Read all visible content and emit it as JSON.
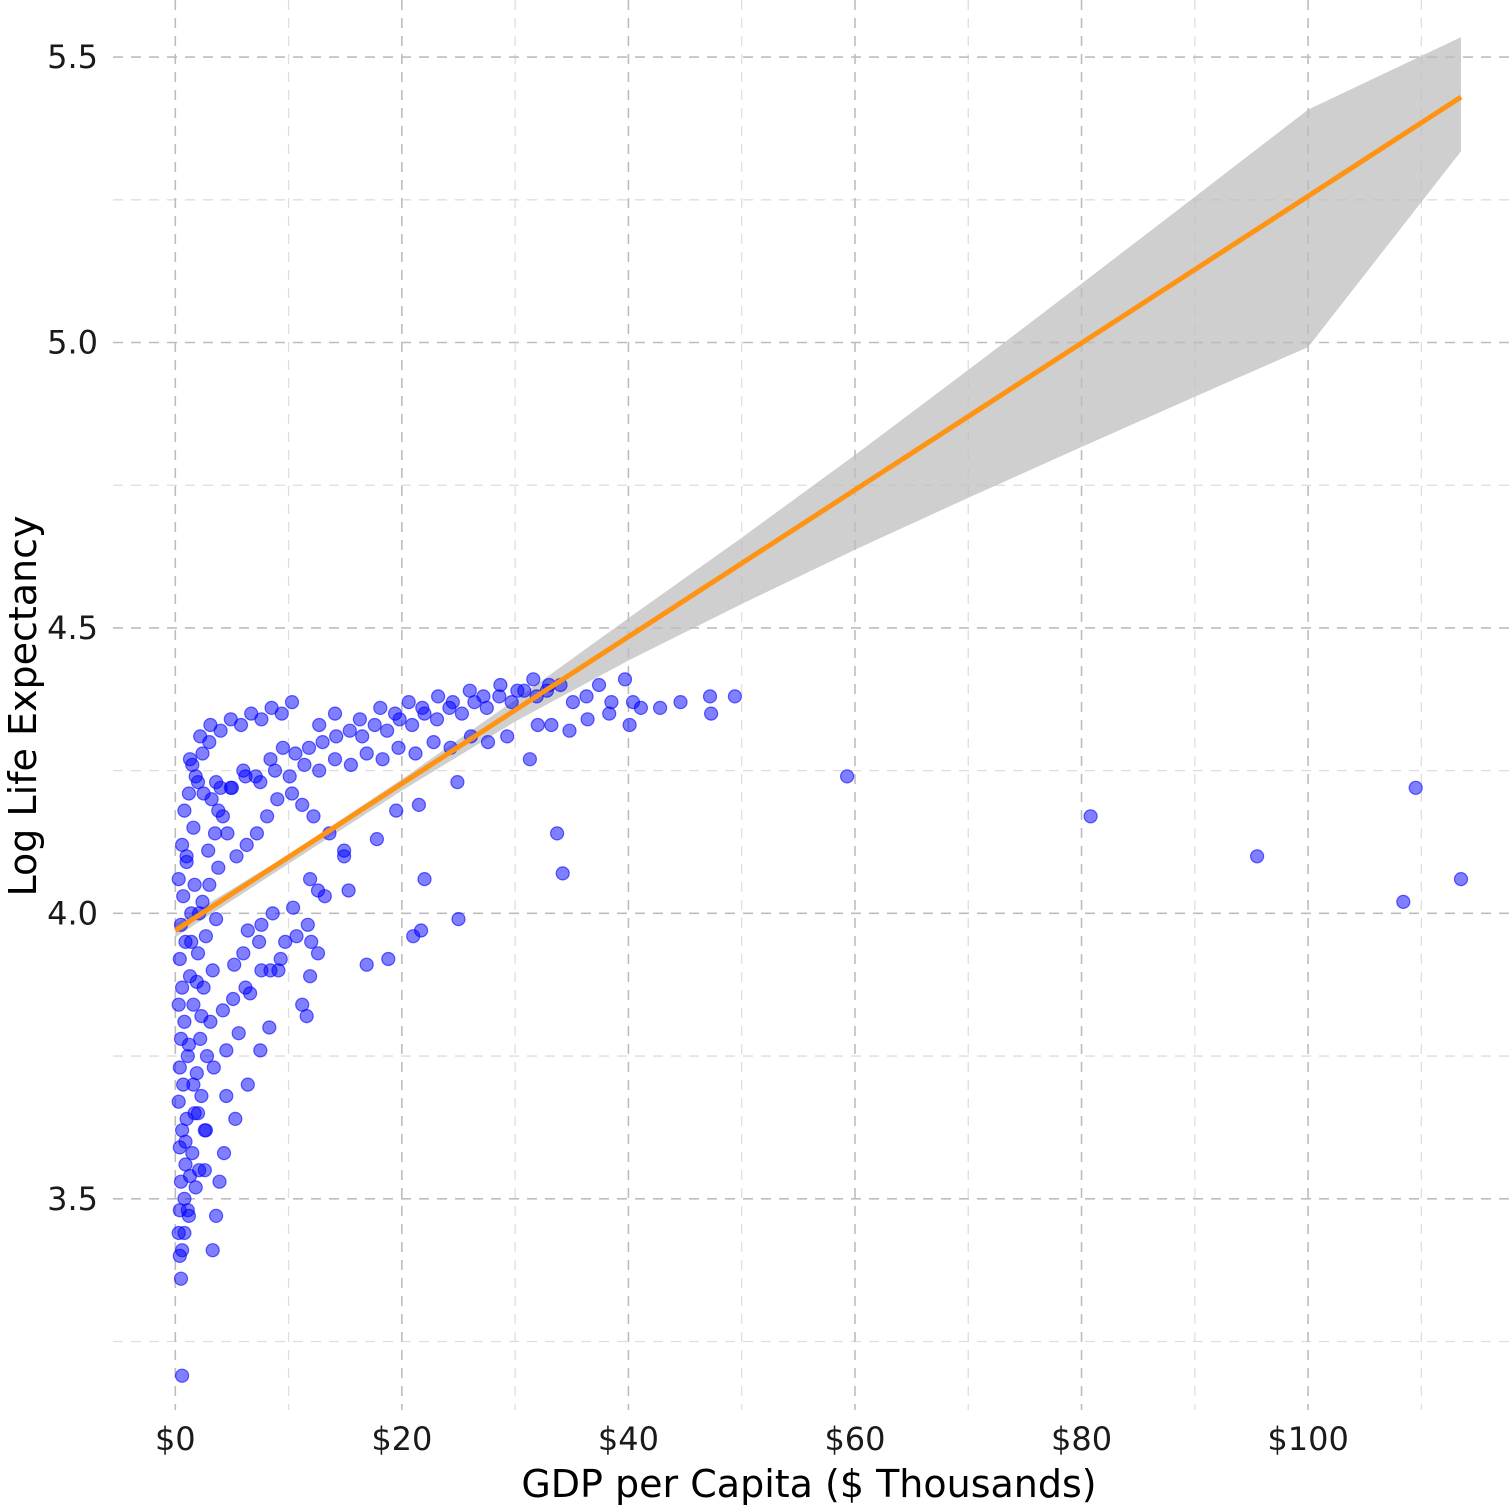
{
  "chart_data": {
    "type": "scatter",
    "title": "",
    "xlabel": "GDP per Capita ($ Thousands)",
    "ylabel": "Log Life Expectancy",
    "xlim": [
      -5.5,
      118
    ],
    "ylim": [
      3.13,
      5.6
    ],
    "x_major_ticks": [
      0,
      20,
      40,
      60,
      80,
      100
    ],
    "x_tick_labels": [
      "$0",
      "$20",
      "$40",
      "$60",
      "$80",
      "$100"
    ],
    "x_minor_ticks": [
      10,
      30,
      50,
      70,
      90,
      110
    ],
    "y_major_ticks": [
      3.5,
      4.0,
      4.5,
      5.0,
      5.5
    ],
    "y_tick_labels": [
      "3.5",
      "4.0",
      "4.5",
      "5.0",
      "5.5"
    ],
    "y_minor_ticks": [
      3.25,
      3.75,
      4.25,
      4.75,
      5.25
    ],
    "grid": true,
    "colors": {
      "points": "#0000ff",
      "fit_line": "#ff9314",
      "confidence_band": "#bdbdbd"
    },
    "points": [
      [
        0.6,
        3.19
      ],
      [
        0.5,
        3.36
      ],
      [
        0.6,
        3.41
      ],
      [
        0.3,
        3.44
      ],
      [
        0.4,
        3.48
      ],
      [
        0.8,
        3.5
      ],
      [
        1.2,
        3.47
      ],
      [
        0.5,
        3.53
      ],
      [
        0.9,
        3.56
      ],
      [
        0.4,
        3.59
      ],
      [
        0.6,
        3.62
      ],
      [
        1.0,
        3.64
      ],
      [
        0.3,
        3.67
      ],
      [
        0.7,
        3.7
      ],
      [
        0.4,
        3.73
      ],
      [
        1.1,
        3.75
      ],
      [
        0.5,
        3.78
      ],
      [
        0.8,
        3.81
      ],
      [
        0.3,
        3.84
      ],
      [
        0.6,
        3.87
      ],
      [
        1.3,
        3.89
      ],
      [
        0.4,
        3.92
      ],
      [
        0.9,
        3.95
      ],
      [
        0.5,
        3.98
      ],
      [
        1.4,
        4.0
      ],
      [
        0.7,
        4.03
      ],
      [
        0.3,
        4.06
      ],
      [
        1.0,
        4.09
      ],
      [
        0.6,
        4.12
      ],
      [
        1.6,
        4.15
      ],
      [
        0.8,
        4.18
      ],
      [
        1.2,
        4.21
      ],
      [
        2.0,
        4.23
      ],
      [
        1.5,
        4.26
      ],
      [
        2.4,
        4.28
      ],
      [
        3.0,
        4.3
      ],
      [
        1.8,
        3.52
      ],
      [
        2.1,
        3.55
      ],
      [
        1.5,
        3.58
      ],
      [
        2.6,
        3.62
      ],
      [
        1.7,
        3.65
      ],
      [
        2.3,
        3.68
      ],
      [
        1.9,
        3.72
      ],
      [
        2.8,
        3.75
      ],
      [
        2.2,
        3.78
      ],
      [
        3.1,
        3.81
      ],
      [
        1.6,
        3.84
      ],
      [
        2.5,
        3.87
      ],
      [
        3.3,
        3.9
      ],
      [
        2.0,
        3.93
      ],
      [
        2.7,
        3.96
      ],
      [
        3.6,
        3.99
      ],
      [
        2.4,
        4.02
      ],
      [
        3.0,
        4.05
      ],
      [
        3.8,
        4.08
      ],
      [
        2.9,
        4.11
      ],
      [
        3.5,
        4.14
      ],
      [
        4.2,
        4.17
      ],
      [
        3.2,
        4.2
      ],
      [
        4.0,
        4.22
      ],
      [
        3.3,
        3.41
      ],
      [
        3.6,
        3.47
      ],
      [
        3.9,
        3.53
      ],
      [
        2.6,
        3.55
      ],
      [
        4.3,
        3.58
      ],
      [
        2.7,
        3.62
      ],
      [
        5.3,
        3.64
      ],
      [
        4.5,
        3.68
      ],
      [
        6.4,
        3.7
      ],
      [
        3.4,
        3.73
      ],
      [
        4.5,
        3.76
      ],
      [
        5.6,
        3.79
      ],
      [
        7.5,
        3.76
      ],
      [
        8.3,
        3.8
      ],
      [
        4.2,
        3.83
      ],
      [
        5.1,
        3.85
      ],
      [
        6.2,
        3.87
      ],
      [
        6.6,
        3.86
      ],
      [
        7.6,
        3.9
      ],
      [
        8.4,
        3.9
      ],
      [
        9.1,
        3.9
      ],
      [
        11.2,
        3.84
      ],
      [
        11.6,
        3.82
      ],
      [
        5.2,
        3.91
      ],
      [
        6.0,
        3.93
      ],
      [
        7.4,
        3.95
      ],
      [
        9.7,
        3.95
      ],
      [
        10.7,
        3.96
      ],
      [
        12.0,
        3.95
      ],
      [
        12.6,
        3.93
      ],
      [
        11.9,
        3.89
      ],
      [
        9.3,
        3.92
      ],
      [
        6.4,
        3.97
      ],
      [
        7.6,
        3.98
      ],
      [
        8.6,
        4.0
      ],
      [
        10.4,
        4.01
      ],
      [
        11.7,
        3.98
      ],
      [
        13.2,
        4.03
      ],
      [
        12.6,
        4.04
      ],
      [
        11.9,
        4.06
      ],
      [
        14.9,
        4.1
      ],
      [
        15.3,
        4.04
      ],
      [
        16.9,
        3.91
      ],
      [
        18.8,
        3.92
      ],
      [
        21.0,
        3.96
      ],
      [
        21.7,
        3.97
      ],
      [
        22.0,
        4.06
      ],
      [
        25.0,
        3.99
      ],
      [
        24.9,
        4.23
      ],
      [
        21.5,
        4.19
      ],
      [
        19.5,
        4.18
      ],
      [
        17.8,
        4.13
      ],
      [
        14.9,
        4.11
      ],
      [
        13.6,
        4.14
      ],
      [
        12.2,
        4.17
      ],
      [
        11.2,
        4.19
      ],
      [
        10.3,
        4.21
      ],
      [
        9.0,
        4.2
      ],
      [
        8.1,
        4.17
      ],
      [
        7.2,
        4.14
      ],
      [
        6.3,
        4.12
      ],
      [
        5.4,
        4.1
      ],
      [
        4.6,
        4.14
      ],
      [
        3.8,
        4.18
      ],
      [
        5.0,
        4.22
      ],
      [
        6.0,
        4.25
      ],
      [
        7.1,
        4.24
      ],
      [
        8.4,
        4.27
      ],
      [
        9.5,
        4.29
      ],
      [
        10.6,
        4.28
      ],
      [
        11.8,
        4.29
      ],
      [
        13.0,
        4.3
      ],
      [
        14.2,
        4.31
      ],
      [
        15.4,
        4.32
      ],
      [
        16.5,
        4.31
      ],
      [
        17.6,
        4.33
      ],
      [
        18.7,
        4.32
      ],
      [
        19.8,
        4.34
      ],
      [
        20.9,
        4.33
      ],
      [
        22.0,
        4.35
      ],
      [
        23.1,
        4.34
      ],
      [
        24.2,
        4.36
      ],
      [
        25.3,
        4.35
      ],
      [
        26.4,
        4.37
      ],
      [
        27.5,
        4.36
      ],
      [
        28.6,
        4.38
      ],
      [
        29.7,
        4.37
      ],
      [
        30.8,
        4.39
      ],
      [
        31.9,
        4.38
      ],
      [
        33.0,
        4.4
      ],
      [
        2.2,
        4.31
      ],
      [
        3.1,
        4.33
      ],
      [
        4.0,
        4.32
      ],
      [
        4.9,
        4.34
      ],
      [
        5.8,
        4.33
      ],
      [
        6.7,
        4.35
      ],
      [
        7.6,
        4.34
      ],
      [
        8.5,
        4.36
      ],
      [
        9.4,
        4.35
      ],
      [
        10.3,
        4.37
      ],
      [
        12.7,
        4.33
      ],
      [
        14.1,
        4.35
      ],
      [
        16.3,
        4.34
      ],
      [
        18.1,
        4.36
      ],
      [
        19.4,
        4.35
      ],
      [
        20.6,
        4.37
      ],
      [
        21.8,
        4.36
      ],
      [
        23.2,
        4.38
      ],
      [
        24.5,
        4.37
      ],
      [
        26.0,
        4.39
      ],
      [
        27.2,
        4.38
      ],
      [
        28.7,
        4.4
      ],
      [
        30.2,
        4.39
      ],
      [
        31.6,
        4.41
      ],
      [
        32.8,
        4.39
      ],
      [
        34.0,
        4.4
      ],
      [
        35.1,
        4.37
      ],
      [
        36.3,
        4.38
      ],
      [
        37.4,
        4.4
      ],
      [
        38.5,
        4.37
      ],
      [
        39.7,
        4.41
      ],
      [
        40.4,
        4.37
      ],
      [
        41.1,
        4.36
      ],
      [
        42.8,
        4.36
      ],
      [
        44.6,
        4.37
      ],
      [
        47.2,
        4.38
      ],
      [
        47.3,
        4.35
      ],
      [
        49.4,
        4.38
      ],
      [
        40.1,
        4.33
      ],
      [
        38.3,
        4.35
      ],
      [
        36.4,
        4.34
      ],
      [
        34.8,
        4.32
      ],
      [
        33.2,
        4.33
      ],
      [
        32.0,
        4.33
      ],
      [
        29.3,
        4.31
      ],
      [
        27.6,
        4.3
      ],
      [
        26.1,
        4.31
      ],
      [
        24.3,
        4.29
      ],
      [
        22.8,
        4.3
      ],
      [
        21.2,
        4.28
      ],
      [
        19.7,
        4.29
      ],
      [
        18.3,
        4.27
      ],
      [
        16.9,
        4.28
      ],
      [
        15.5,
        4.26
      ],
      [
        14.1,
        4.27
      ],
      [
        12.7,
        4.25
      ],
      [
        11.4,
        4.26
      ],
      [
        10.1,
        4.24
      ],
      [
        8.8,
        4.25
      ],
      [
        7.5,
        4.23
      ],
      [
        6.2,
        4.24
      ],
      [
        4.9,
        4.22
      ],
      [
        3.6,
        4.23
      ],
      [
        2.5,
        4.21
      ],
      [
        1.8,
        4.24
      ],
      [
        1.3,
        4.27
      ],
      [
        1.0,
        4.1
      ],
      [
        1.7,
        4.05
      ],
      [
        2.1,
        4.0
      ],
      [
        1.4,
        3.95
      ],
      [
        1.9,
        3.88
      ],
      [
        2.3,
        3.82
      ],
      [
        1.2,
        3.77
      ],
      [
        1.6,
        3.7
      ],
      [
        2.0,
        3.65
      ],
      [
        0.9,
        3.6
      ],
      [
        1.3,
        3.54
      ],
      [
        1.1,
        3.48
      ],
      [
        0.8,
        3.44
      ],
      [
        0.4,
        3.4
      ],
      [
        31.3,
        4.27
      ],
      [
        33.7,
        4.14
      ],
      [
        34.2,
        4.07
      ],
      [
        59.3,
        4.24
      ],
      [
        80.8,
        4.17
      ],
      [
        95.5,
        4.1
      ],
      [
        108.4,
        4.02
      ],
      [
        109.5,
        4.22
      ],
      [
        113.5,
        4.06
      ]
    ],
    "fit_line": {
      "x": [
        0,
        113.5
      ],
      "y": [
        3.97,
        5.43
      ]
    },
    "confidence_band": {
      "x": [
        0,
        10,
        20,
        30,
        40,
        50,
        60,
        70,
        80,
        90,
        100,
        113.5
      ],
      "lower": [
        3.958,
        4.087,
        4.215,
        4.336,
        4.443,
        4.542,
        4.637,
        4.728,
        4.817,
        4.905,
        4.992,
        5.335
      ],
      "upper": [
        3.982,
        4.103,
        4.235,
        4.374,
        4.517,
        4.658,
        4.803,
        4.952,
        5.103,
        5.255,
        5.408,
        5.535
      ]
    }
  }
}
